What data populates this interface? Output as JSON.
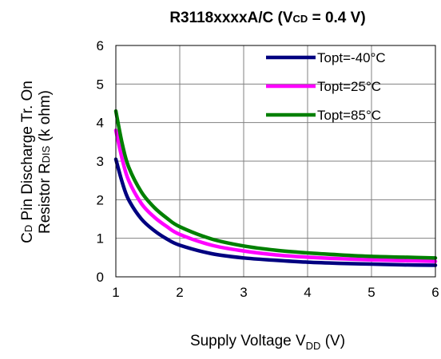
{
  "chart_data": {
    "type": "line",
    "title": {
      "main": "R3118xxxxA/C (V",
      "sub": "CD",
      "tail": " = 0.4 V)"
    },
    "xlabel": {
      "main": "Supply Voltage V",
      "sub": "DD",
      "tail": " (V)"
    },
    "ylabel": {
      "line1": {
        "a": "C",
        "sub": "D",
        "b": " Pin Discharge Tr. On"
      },
      "line2": {
        "a": "Resistor R",
        "sub": "DIS",
        "b": " (k ohm)"
      }
    },
    "xlim": [
      1,
      6
    ],
    "ylim": [
      0,
      6
    ],
    "xticks": [
      "1",
      "2",
      "3",
      "4",
      "5",
      "6"
    ],
    "yticks": [
      "0",
      "1",
      "2",
      "3",
      "4",
      "5",
      "6"
    ],
    "grid": true,
    "legend_position": "top-right",
    "x": [
      1.0,
      1.1,
      1.2,
      1.4,
      1.6,
      1.8,
      2.0,
      2.5,
      3.0,
      3.5,
      4.0,
      4.5,
      5.0,
      5.5,
      6.0
    ],
    "series": [
      {
        "name": "Topt=-40°C",
        "color": "#000080",
        "values": [
          3.05,
          2.45,
          2.0,
          1.5,
          1.2,
          0.98,
          0.82,
          0.6,
          0.49,
          0.43,
          0.38,
          0.35,
          0.33,
          0.31,
          0.3
        ]
      },
      {
        "name": "Topt=25°C",
        "color": "#ff00ff",
        "values": [
          3.8,
          3.05,
          2.5,
          1.9,
          1.55,
          1.3,
          1.1,
          0.82,
          0.67,
          0.57,
          0.51,
          0.47,
          0.44,
          0.42,
          0.4
        ]
      },
      {
        "name": "Topt=85°C",
        "color": "#008000",
        "values": [
          4.3,
          3.45,
          2.85,
          2.2,
          1.8,
          1.52,
          1.3,
          0.98,
          0.8,
          0.69,
          0.62,
          0.57,
          0.53,
          0.51,
          0.49
        ]
      }
    ]
  }
}
